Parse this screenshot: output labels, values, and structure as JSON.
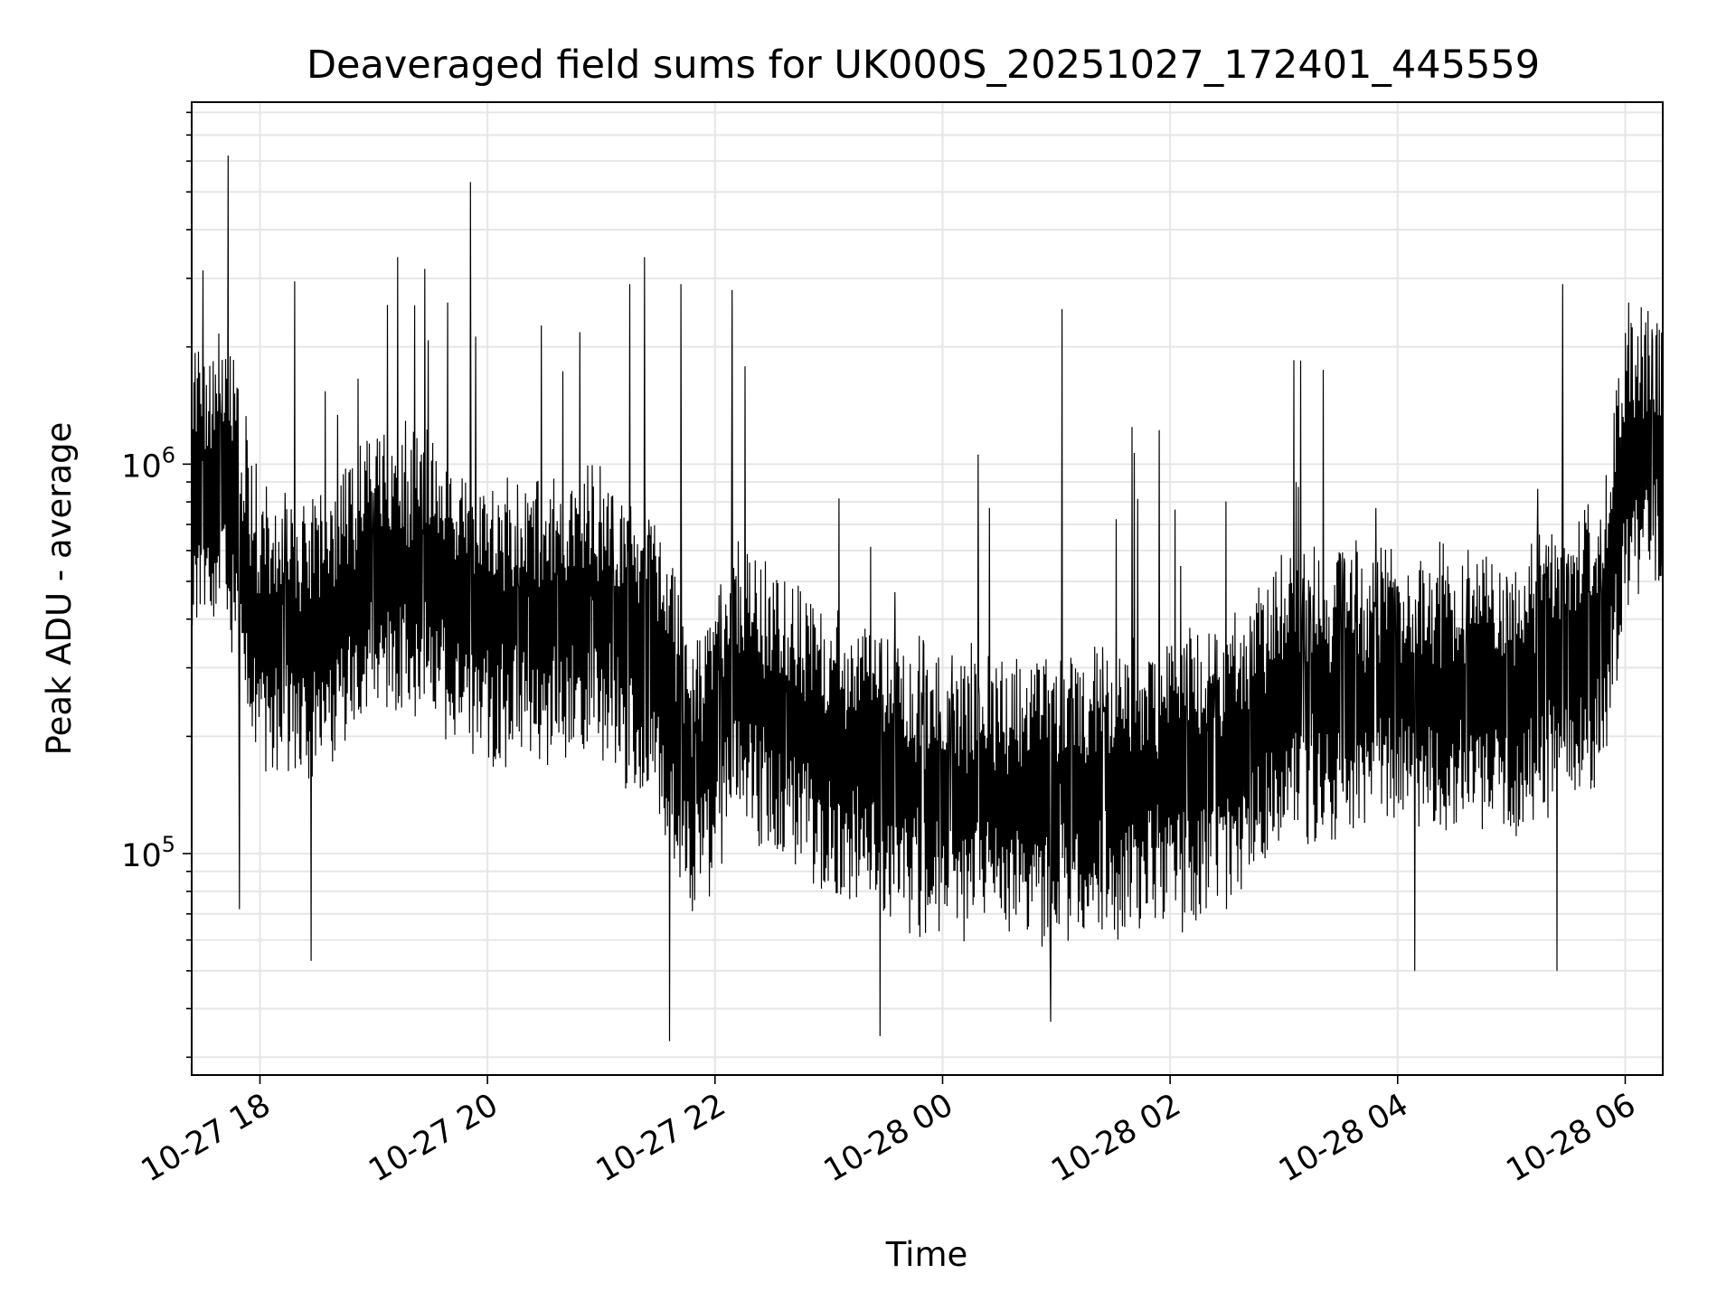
{
  "chart_data": {
    "type": "line",
    "title": "Deaveraged field sums for UK000S_20251027_172401_445559",
    "xlabel": "Time",
    "ylabel": "Peak ADU - average",
    "yscale": "log",
    "ylim": [
      27000,
      8500000
    ],
    "xlim_hours": [
      -0.6,
      12.33
    ],
    "x_ticks": [
      {
        "label": "10-27 18",
        "hours": 0
      },
      {
        "label": "10-27 20",
        "hours": 2
      },
      {
        "label": "10-27 22",
        "hours": 4
      },
      {
        "label": "10-28 00",
        "hours": 6
      },
      {
        "label": "10-28 02",
        "hours": 8
      },
      {
        "label": "10-28 04",
        "hours": 10
      },
      {
        "label": "10-28 06",
        "hours": 12
      }
    ],
    "y_ticks": [
      {
        "base": "10",
        "exp": "5",
        "value": 100000
      },
      {
        "base": "10",
        "exp": "6",
        "value": 1000000
      }
    ],
    "grid": true,
    "line_color": "#000000",
    "series": [
      {
        "name": "field sums",
        "trend": [
          {
            "hours": -0.6,
            "value": 850000
          },
          {
            "hours": -0.3,
            "value": 950000
          },
          {
            "hours": 0.0,
            "value": 380000
          },
          {
            "hours": 0.5,
            "value": 350000
          },
          {
            "hours": 1.0,
            "value": 550000
          },
          {
            "hours": 1.5,
            "value": 520000
          },
          {
            "hours": 2.0,
            "value": 380000
          },
          {
            "hours": 3.0,
            "value": 420000
          },
          {
            "hours": 3.5,
            "value": 300000
          },
          {
            "hours": 3.8,
            "value": 150000
          },
          {
            "hours": 4.2,
            "value": 280000
          },
          {
            "hours": 5.0,
            "value": 180000
          },
          {
            "hours": 6.0,
            "value": 140000
          },
          {
            "hours": 7.0,
            "value": 140000
          },
          {
            "hours": 8.0,
            "value": 150000
          },
          {
            "hours": 8.6,
            "value": 180000
          },
          {
            "hours": 9.0,
            "value": 250000
          },
          {
            "hours": 10.0,
            "value": 270000
          },
          {
            "hours": 11.0,
            "value": 260000
          },
          {
            "hours": 11.8,
            "value": 350000
          },
          {
            "hours": 12.0,
            "value": 1000000
          },
          {
            "hours": 12.33,
            "value": 1100000
          }
        ],
        "spikes": [
          {
            "hours": -0.28,
            "value": 6200000
          },
          {
            "hours": -0.18,
            "value": 72000
          },
          {
            "hours": 0.45,
            "value": 53000
          },
          {
            "hours": 1.21,
            "value": 3400000
          },
          {
            "hours": 1.65,
            "value": 2600000
          },
          {
            "hours": 1.85,
            "value": 5300000
          },
          {
            "hours": 3.25,
            "value": 2900000
          },
          {
            "hours": 3.38,
            "value": 3400000
          },
          {
            "hours": 3.6,
            "value": 33000
          },
          {
            "hours": 3.7,
            "value": 2900000
          },
          {
            "hours": 4.15,
            "value": 2800000
          },
          {
            "hours": 5.45,
            "value": 34000
          },
          {
            "hours": 7.05,
            "value": 2500000
          },
          {
            "hours": 6.95,
            "value": 37000
          },
          {
            "hours": 10.15,
            "value": 50000
          },
          {
            "hours": 11.45,
            "value": 2900000
          },
          {
            "hours": 11.4,
            "value": 50000
          },
          {
            "hours": 12.03,
            "value": 2600000
          },
          {
            "hours": 12.28,
            "value": 2300000
          }
        ]
      }
    ]
  }
}
